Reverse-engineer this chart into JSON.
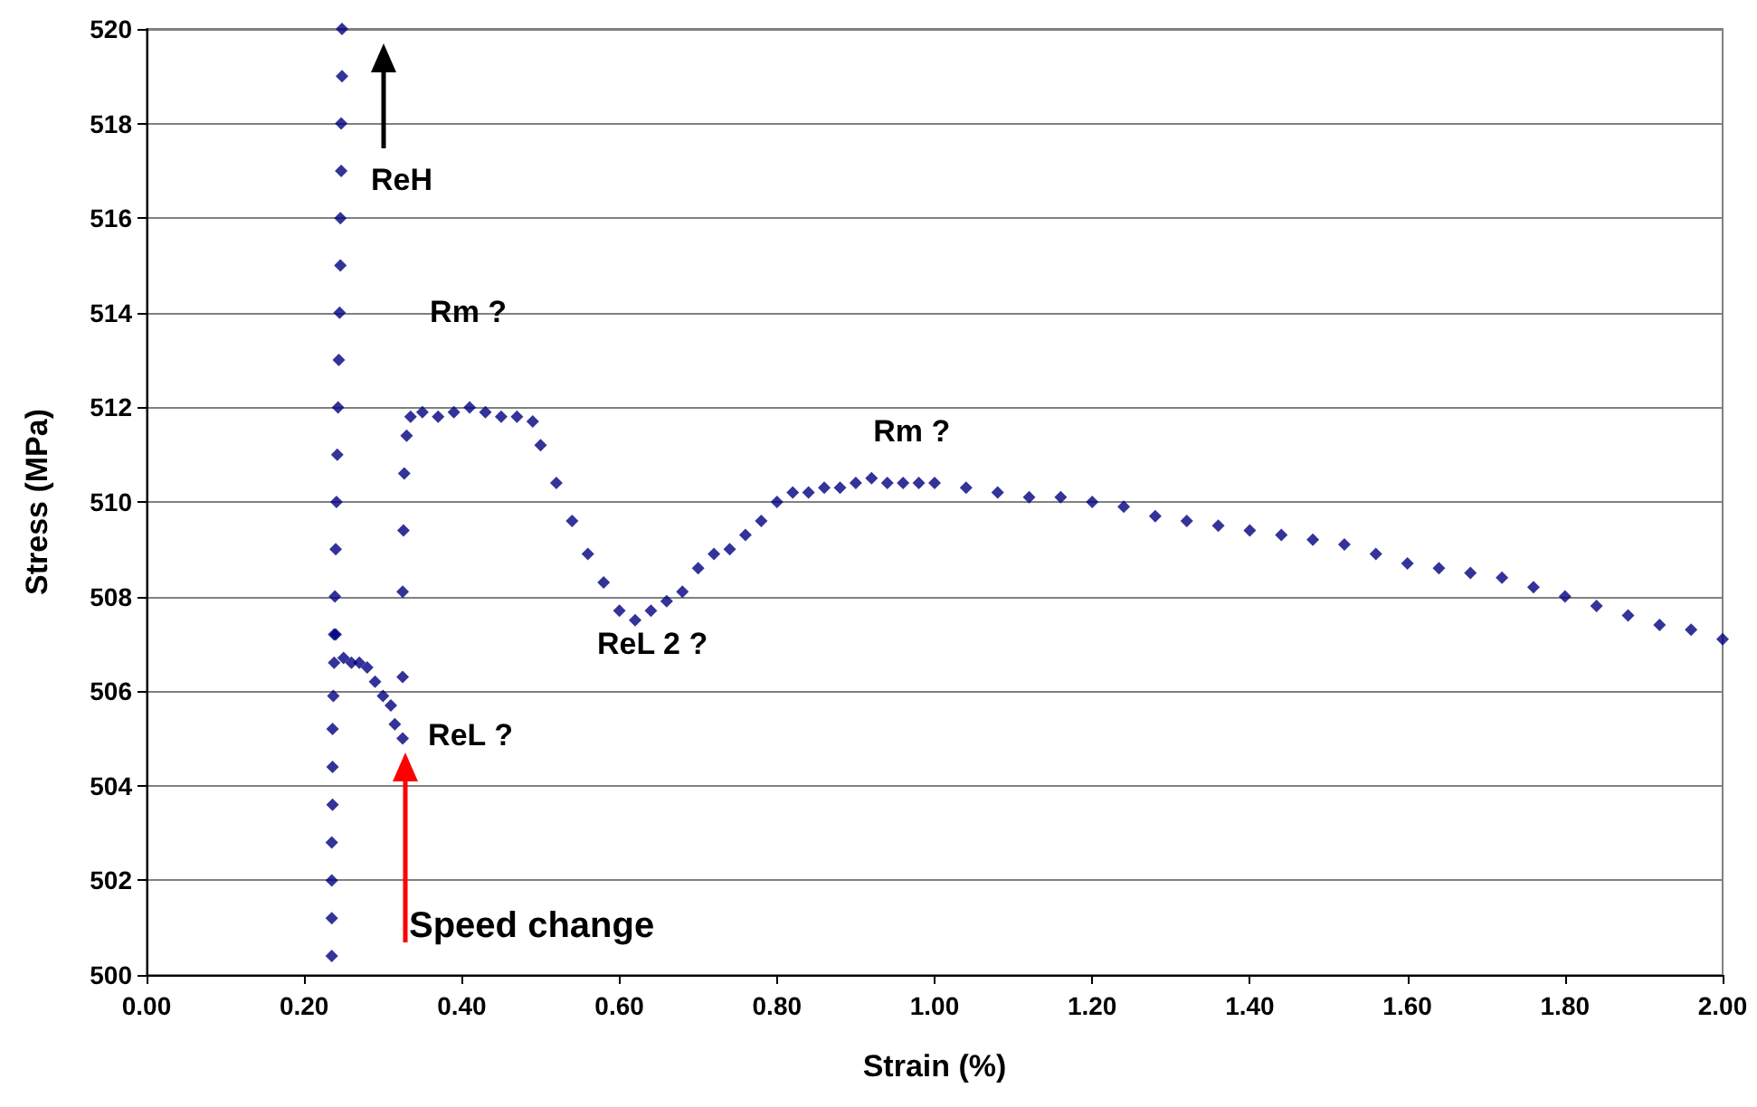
{
  "chart_data": {
    "type": "scatter",
    "xlabel": "Strain (%)",
    "ylabel": "Stress (MPa)",
    "xlim": [
      0,
      2
    ],
    "ylim": [
      500,
      520
    ],
    "xticks": [
      {
        "value": 0,
        "label": "0.00"
      },
      {
        "value": 0.2,
        "label": "0.20"
      },
      {
        "value": 0.4,
        "label": "0.40"
      },
      {
        "value": 0.6,
        "label": "0.60"
      },
      {
        "value": 0.8,
        "label": "0.80"
      },
      {
        "value": 1,
        "label": "1.00"
      },
      {
        "value": 1.2,
        "label": "1.20"
      },
      {
        "value": 1.4,
        "label": "1.40"
      },
      {
        "value": 1.6,
        "label": "1.60"
      },
      {
        "value": 1.8,
        "label": "1.80"
      },
      {
        "value": 2,
        "label": "2.00"
      }
    ],
    "yticks": [
      500,
      502,
      504,
      506,
      508,
      510,
      512,
      514,
      516,
      518,
      520
    ],
    "grid": "y",
    "marker": "diamond",
    "series": [
      {
        "color": "#000080",
        "x": [
          0.235,
          0.235,
          0.235,
          0.235,
          0.236,
          0.236,
          0.236,
          0.237,
          0.238,
          0.238,
          0.239,
          0.24,
          0.241,
          0.242,
          0.243,
          0.244,
          0.245,
          0.246,
          0.246,
          0.247,
          0.247,
          0.248,
          0.248,
          0.24,
          0.25,
          0.26,
          0.27,
          0.28,
          0.29,
          0.3,
          0.31,
          0.315,
          0.325,
          0.325,
          0.325,
          0.326,
          0.327,
          0.33,
          0.335,
          0.35,
          0.37,
          0.39,
          0.41,
          0.43,
          0.45,
          0.47,
          0.49,
          0.5,
          0.52,
          0.54,
          0.56,
          0.58,
          0.6,
          0.62,
          0.64,
          0.66,
          0.68,
          0.7,
          0.72,
          0.74,
          0.76,
          0.78,
          0.8,
          0.82,
          0.84,
          0.86,
          0.88,
          0.9,
          0.92,
          0.94,
          0.96,
          0.98,
          1,
          1.04,
          1.08,
          1.12,
          1.16,
          1.2,
          1.24,
          1.28,
          1.32,
          1.36,
          1.4,
          1.44,
          1.48,
          1.52,
          1.56,
          1.6,
          1.64,
          1.68,
          1.72,
          1.76,
          1.8,
          1.84,
          1.88,
          1.92,
          1.96,
          2
        ],
        "values": [
          500.4,
          501.2,
          502,
          502.8,
          503.6,
          504.4,
          505.2,
          505.9,
          506.6,
          507.2,
          508,
          509,
          510,
          511,
          512,
          513,
          514,
          515,
          516,
          517,
          518,
          519,
          520,
          507.2,
          506.7,
          506.6,
          506.6,
          506.5,
          506.2,
          505.9,
          505.7,
          505.3,
          505,
          506.3,
          508.1,
          509.4,
          510.6,
          511.4,
          511.8,
          511.9,
          511.8,
          511.9,
          512,
          511.9,
          511.8,
          511.8,
          511.7,
          511.2,
          510.4,
          509.6,
          508.9,
          508.3,
          507.7,
          507.5,
          507.7,
          507.9,
          508.1,
          508.6,
          508.9,
          509,
          509.3,
          509.6,
          510,
          510.2,
          510.2,
          510.3,
          510.3,
          510.4,
          510.5,
          510.4,
          510.4,
          510.4,
          510.4,
          510.3,
          510.2,
          510.1,
          510.1,
          510,
          509.9,
          509.7,
          509.6,
          509.5,
          509.4,
          509.3,
          509.2,
          509.1,
          508.9,
          508.7,
          508.6,
          508.5,
          508.4,
          508.2,
          508,
          507.8,
          507.6,
          507.4,
          507.3,
          507.1
        ]
      }
    ],
    "annotations": [
      "ReH",
      {
        "text": "Rm ?",
        "x": 0.41,
        "y": 512
      },
      {
        "text": "ReL ?",
        "x": 0.325,
        "y": 505
      },
      {
        "text": "ReL 2 ?",
        "x": 0.62,
        "y": 507.5
      },
      {
        "text": "Rm ?",
        "x": 0.92,
        "y": 510.5
      },
      "Speed change"
    ]
  }
}
